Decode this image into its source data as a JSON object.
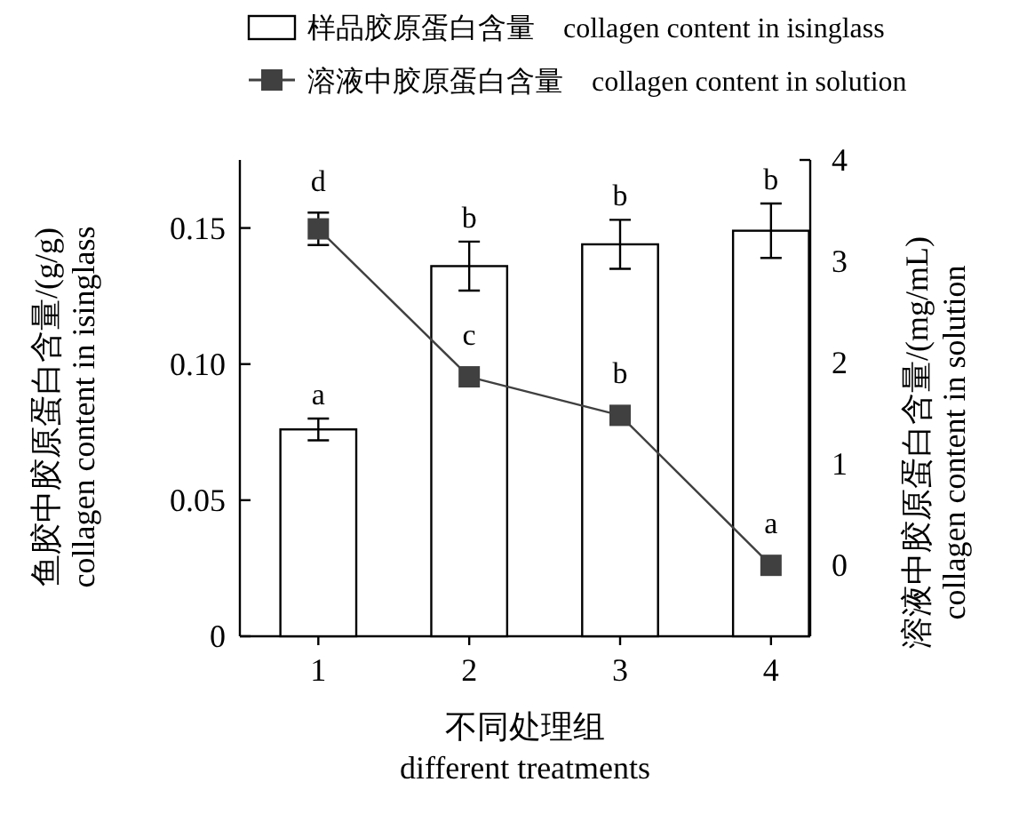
{
  "chart_data": {
    "type": "bar",
    "categories": [
      "1",
      "2",
      "3",
      "4"
    ],
    "xlabel": "不同处理组\ndifferent treatments",
    "ylabel": "鱼胶中胶原蛋白含量/(g/g)\ncollagen content in isinglass",
    "y2label": "溶液中胶原蛋白含量/(mg/mL)\ncollagen content in solution",
    "ylim": [
      0,
      0.175
    ],
    "yticks": [
      0,
      0.05,
      {
        "value": 0.1,
        "label": "0.10"
      },
      0.15
    ],
    "y2lim": [
      -0.7,
      4
    ],
    "y2ticks": [
      0,
      1,
      2,
      3,
      4
    ],
    "legend": "top",
    "marker": "square",
    "series": [
      {
        "name": "样品胶原蛋白含量    collagen content in isinglass",
        "color": "#ffffff",
        "values": [
          0.076,
          0.136,
          0.144,
          0.149
        ],
        "errors": [
          0.004,
          0.009,
          0.009,
          0.01
        ],
        "value_labels": [
          "a",
          "b",
          "b",
          "b"
        ]
      },
      {
        "name": "溶液中胶原蛋白含量    collagen content in solution",
        "type": "line",
        "axis": "y2",
        "color": "#404040",
        "values": [
          3.32,
          1.86,
          1.48,
          0
        ],
        "errors": [
          0.16,
          null,
          null,
          null
        ],
        "value_labels": [
          "d",
          "c",
          "b",
          "a"
        ]
      }
    ]
  }
}
